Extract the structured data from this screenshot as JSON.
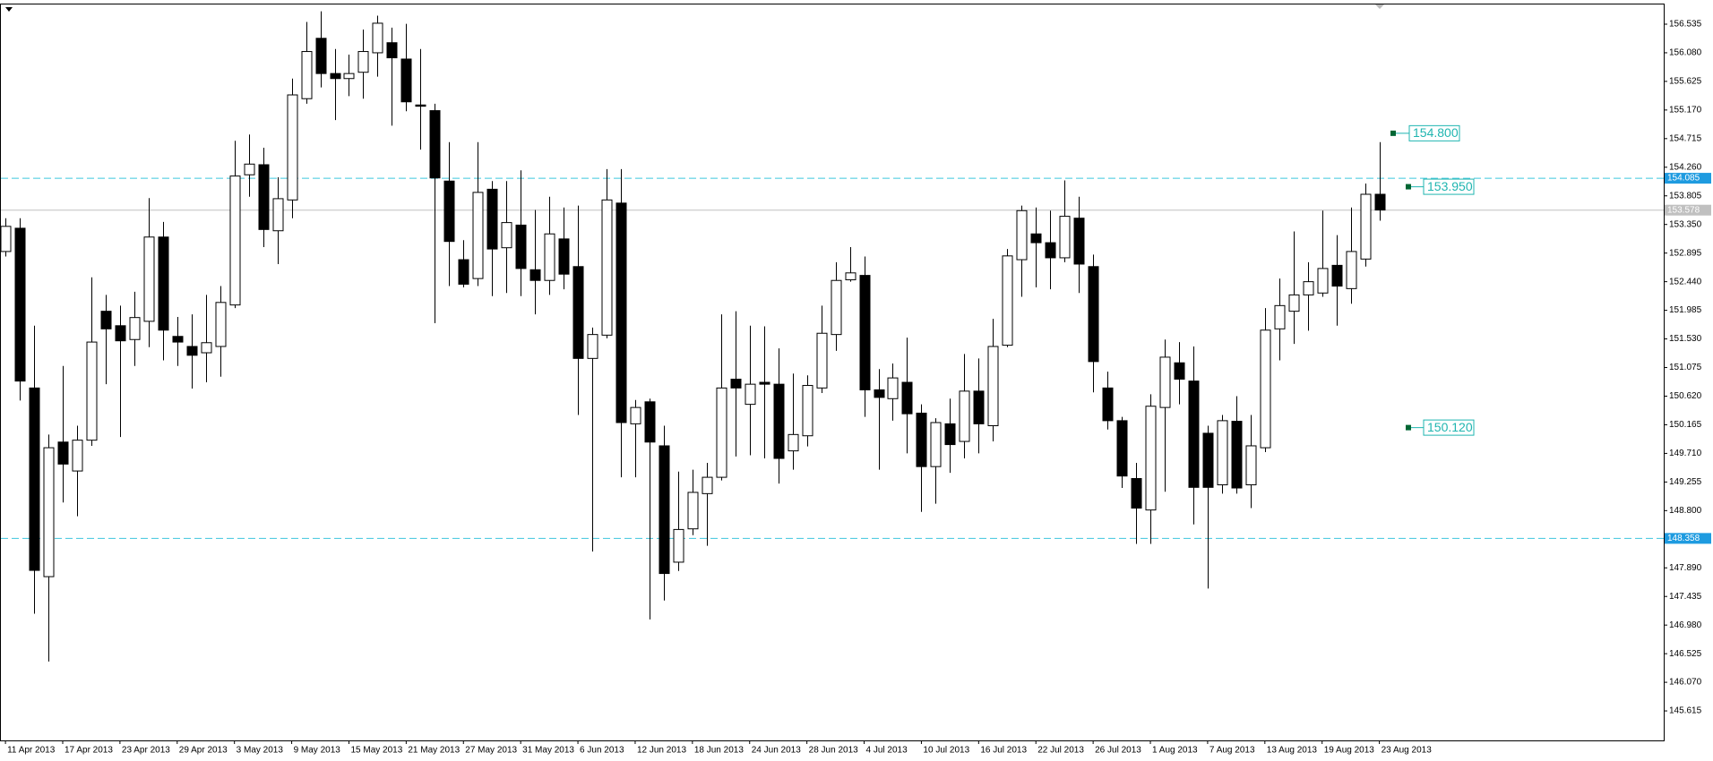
{
  "chart_data": {
    "type": "candlestick",
    "categories": [
      "11 Apr 2013",
      null,
      null,
      null,
      "17 Apr 2013",
      null,
      null,
      null,
      "23 Apr 2013",
      null,
      null,
      null,
      "29 Apr 2013",
      null,
      null,
      null,
      "3 May 2013",
      null,
      null,
      null,
      "9 May 2013",
      null,
      null,
      null,
      "15 May 2013",
      null,
      null,
      null,
      "21 May 2013",
      null,
      null,
      null,
      "27 May 2013",
      null,
      null,
      null,
      "31 May 2013",
      null,
      null,
      null,
      "6 Jun 2013",
      null,
      null,
      null,
      "12 Jun 2013",
      null,
      null,
      null,
      "18 Jun 2013",
      null,
      null,
      null,
      "24 Jun 2013",
      null,
      null,
      null,
      "28 Jun 2013",
      null,
      null,
      null,
      "4 Jul 2013",
      null,
      null,
      null,
      "10 Jul 2013",
      null,
      null,
      null,
      "16 Jul 2013",
      null,
      null,
      null,
      "22 Jul 2013",
      null,
      null,
      null,
      "26 Jul 2013",
      null,
      null,
      null,
      "1 Aug 2013",
      null,
      null,
      null,
      "7 Aug 2013",
      null,
      null,
      null,
      "13 Aug 2013",
      null,
      null,
      null,
      "19 Aug 2013",
      null,
      null,
      null,
      "23 Aug 2013"
    ],
    "open": [
      152.92,
      153.29,
      150.75,
      147.75,
      149.89,
      149.43,
      149.92,
      151.97,
      151.74,
      151.52,
      151.81,
      153.15,
      151.57,
      151.41,
      151.31,
      151.41,
      152.07,
      154.14,
      154.3,
      153.25,
      153.74,
      155.35,
      156.31,
      155.75,
      155.67,
      155.77,
      156.08,
      156.24,
      155.98,
      155.25,
      155.16,
      154.04,
      152.79,
      152.49,
      153.91,
      152.98,
      153.34,
      152.63,
      152.46,
      153.12,
      152.68,
      151.22,
      151.59,
      153.69,
      150.18,
      150.53,
      149.83,
      147.98,
      148.51,
      149.07,
      149.33,
      150.89,
      150.49,
      150.84,
      150.81,
      149.75,
      149.99,
      150.75,
      151.6,
      152.47,
      152.54,
      150.72,
      150.58,
      150.84,
      150.35,
      149.5,
      150.18,
      149.9,
      150.7,
      150.15,
      151.43,
      152.79,
      153.2,
      153.06,
      152.82,
      153.45,
      152.68,
      150.75,
      150.23,
      149.31,
      148.81,
      150.44,
      151.15,
      150.86,
      150.03,
      149.21,
      150.22,
      149.21,
      149.8,
      151.69,
      151.97,
      152.23,
      152.26,
      152.7,
      152.33,
      152.8,
      153.83
    ],
    "high": [
      153.45,
      153.45,
      151.74,
      150.01,
      151.1,
      150.15,
      152.51,
      152.23,
      152.06,
      152.28,
      153.77,
      153.39,
      151.88,
      151.92,
      152.23,
      152.37,
      154.68,
      154.78,
      154.57,
      154.1,
      155.67,
      156.57,
      156.74,
      156.14,
      156.05,
      156.45,
      156.67,
      156.48,
      156.54,
      156.14,
      155.27,
      154.66,
      153.1,
      154.66,
      154.04,
      154.04,
      154.21,
      153.58,
      153.79,
      153.62,
      153.65,
      151.71,
      154.23,
      154.23,
      150.56,
      150.58,
      150.15,
      149.42,
      149.45,
      149.56,
      151.92,
      151.97,
      151.74,
      151.73,
      151.38,
      150.98,
      150.95,
      152.06,
      152.75,
      152.99,
      152.84,
      151.05,
      151.14,
      151.55,
      150.49,
      150.27,
      150.58,
      151.29,
      151.22,
      151.85,
      152.96,
      153.65,
      153.62,
      153.57,
      154.05,
      153.79,
      152.87,
      151.01,
      150.29,
      149.56,
      150.65,
      151.52,
      151.48,
      151.41,
      150.15,
      150.32,
      150.62,
      150.32,
      152.02,
      152.49,
      153.24,
      152.75,
      153.57,
      153.18,
      153.62,
      154.0,
      154.66
    ],
    "low": [
      152.84,
      150.55,
      147.16,
      146.4,
      148.93,
      148.71,
      149.83,
      150.81,
      149.97,
      151.1,
      151.4,
      151.19,
      151.1,
      150.74,
      150.84,
      150.93,
      152.02,
      153.79,
      152.99,
      152.72,
      153.45,
      155.27,
      155.53,
      155.01,
      155.39,
      155.35,
      155.7,
      154.92,
      155.15,
      154.54,
      151.78,
      152.37,
      152.35,
      152.37,
      152.21,
      152.26,
      152.21,
      151.92,
      152.23,
      152.32,
      150.32,
      148.15,
      151.54,
      149.33,
      149.33,
      147.07,
      147.37,
      147.84,
      148.41,
      148.24,
      149.28,
      149.66,
      149.68,
      149.63,
      149.23,
      149.45,
      149.82,
      150.67,
      151.34,
      152.44,
      150.29,
      149.45,
      150.23,
      149.71,
      148.78,
      148.91,
      149.4,
      149.63,
      149.71,
      149.9,
      151.4,
      152.2,
      152.35,
      152.32,
      152.75,
      152.26,
      150.68,
      150.09,
      149.16,
      148.27,
      148.27,
      149.1,
      150.49,
      148.58,
      147.56,
      149.07,
      149.07,
      148.84,
      149.73,
      151.19,
      151.45,
      151.66,
      152.2,
      151.74,
      152.09,
      152.68,
      153.41
    ],
    "close": [
      153.32,
      150.86,
      147.85,
      149.8,
      149.54,
      149.92,
      151.48,
      151.69,
      151.5,
      151.87,
      153.15,
      151.67,
      151.48,
      151.27,
      151.47,
      152.11,
      154.12,
      154.31,
      153.27,
      153.76,
      155.41,
      156.1,
      155.75,
      155.67,
      155.75,
      156.1,
      156.55,
      156.0,
      155.3,
      155.23,
      154.09,
      153.08,
      152.4,
      153.86,
      152.96,
      153.38,
      152.65,
      152.46,
      153.2,
      152.56,
      151.22,
      151.6,
      153.74,
      150.2,
      150.44,
      149.89,
      147.8,
      148.5,
      149.09,
      149.33,
      150.75,
      150.75,
      150.81,
      150.81,
      149.63,
      150.01,
      150.79,
      151.62,
      152.46,
      152.58,
      150.72,
      150.6,
      150.91,
      150.34,
      149.5,
      150.2,
      149.85,
      150.7,
      150.18,
      151.41,
      152.85,
      153.57,
      153.06,
      152.82,
      153.48,
      152.72,
      151.17,
      150.23,
      149.35,
      148.84,
      150.46,
      151.24,
      150.89,
      149.17,
      149.17,
      150.23,
      149.16,
      149.83,
      151.67,
      152.06,
      152.23,
      152.44,
      152.65,
      152.37,
      152.92,
      153.83,
      153.58
    ],
    "up_color": "#ffffff",
    "down_color": "#000000",
    "ylim": [
      145.146,
      156.848
    ],
    "yticks": [
      145.615,
      {
        "value": 146.07,
        "label": "146.070"
      },
      146.525,
      {
        "value": 146.98,
        "label": "146.980"
      },
      147.435,
      {
        "value": 147.89,
        "label": "147.890"
      },
      {
        "value": 148.8,
        "label": "148.800"
      },
      149.255,
      {
        "value": 149.71,
        "label": "149.710"
      },
      150.165,
      {
        "value": 150.62,
        "label": "150.620"
      },
      151.075,
      {
        "value": 151.53,
        "label": "151.530"
      },
      151.985,
      {
        "value": 152.44,
        "label": "152.440"
      },
      152.895,
      {
        "value": 153.35,
        "label": "153.350"
      },
      153.805,
      {
        "value": 154.26,
        "label": "154.260"
      },
      154.715,
      {
        "value": 155.17,
        "label": "155.170"
      },
      155.625,
      {
        "value": 156.08,
        "label": "156.080"
      },
      156.535
    ],
    "grid": false,
    "hlines": [
      154.085,
      148.358
    ],
    "hline_color": "#3ec6dd",
    "hline_label_color": "#1e9be0",
    "last_price": 153.578,
    "last_price_color": "#c0c0c0",
    "price_tags": [
      {
        "value": 154.8,
        "label": "154.800"
      },
      {
        "value": 153.95,
        "label": "153.950"
      },
      {
        "value": 150.12,
        "label": "150.120"
      }
    ],
    "tag_color": "#1fb5b0"
  }
}
